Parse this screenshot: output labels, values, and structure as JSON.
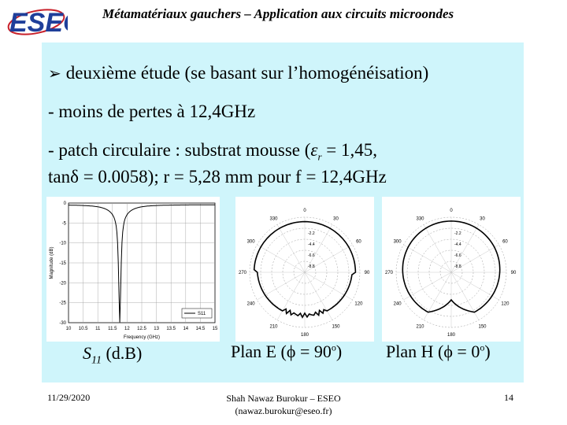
{
  "header": {
    "logo_text": "ESEO",
    "title": "Métamatériaux gauchers – Application aux circuits microondes"
  },
  "content": {
    "line1": "deuxième étude (se basant sur l’homogénéisation)",
    "line2": "- moins de pertes à 12,4GHz",
    "line3_a": "- patch circulaire : substrat mousse (",
    "line3_eps": "ε",
    "line3_sub": "r",
    "line3_b": " = 1,45,",
    "line4_a": "tan",
    "line4_delta": "δ",
    "line4_b": " = 0.0058); r = 5,28 mm pour f = 12,4GHz"
  },
  "figures": {
    "s11": {
      "ylabel": "Magnitude (dB)",
      "xlabel": "Frequency (GHz)",
      "legend": "S11",
      "yticks": [
        "0",
        "-5",
        "-10",
        "-15",
        "-20",
        "-25",
        "-30"
      ],
      "xticks": [
        "10",
        "10.5",
        "11",
        "11.5",
        "12",
        "12.5",
        "13",
        "13.5",
        "14",
        "14.5",
        "15"
      ]
    },
    "eplane": {
      "angles": [
        "0",
        "30",
        "60",
        "90",
        "120",
        "150",
        "180",
        "210",
        "240",
        "270",
        "300",
        "330"
      ],
      "rings": [
        "-2.2",
        "-4.4",
        "-6.6",
        "-8.8"
      ]
    },
    "hplane": {
      "angles": [
        "0",
        "30",
        "60",
        "90",
        "120",
        "150",
        "180",
        "210",
        "240",
        "270",
        "300",
        "330"
      ],
      "rings": [
        "-2.2",
        "-4.4",
        "-6.6",
        "-8.8"
      ]
    }
  },
  "captions": {
    "s11_main": "S",
    "s11_sub": "11",
    "s11_unit": " (d.B)",
    "eplane_a": "Plan E (",
    "eplane_phi": "ϕ",
    "eplane_b": " = 90",
    "eplane_deg": "o",
    "eplane_c": ")",
    "hplane_a": "Plan H (",
    "hplane_phi": "ϕ",
    "hplane_b": " = 0",
    "hplane_deg": "o",
    "hplane_c": ")"
  },
  "footer": {
    "date": "11/29/2020",
    "author": "Shah Nawaz Burokur – ESEO",
    "email": "(nawaz.burokur@eseo.fr)",
    "page": "14"
  },
  "colors": {
    "content_bg": "#cff5fb",
    "logo_blue": "#1f3f9a",
    "logo_red": "#c8202a"
  }
}
